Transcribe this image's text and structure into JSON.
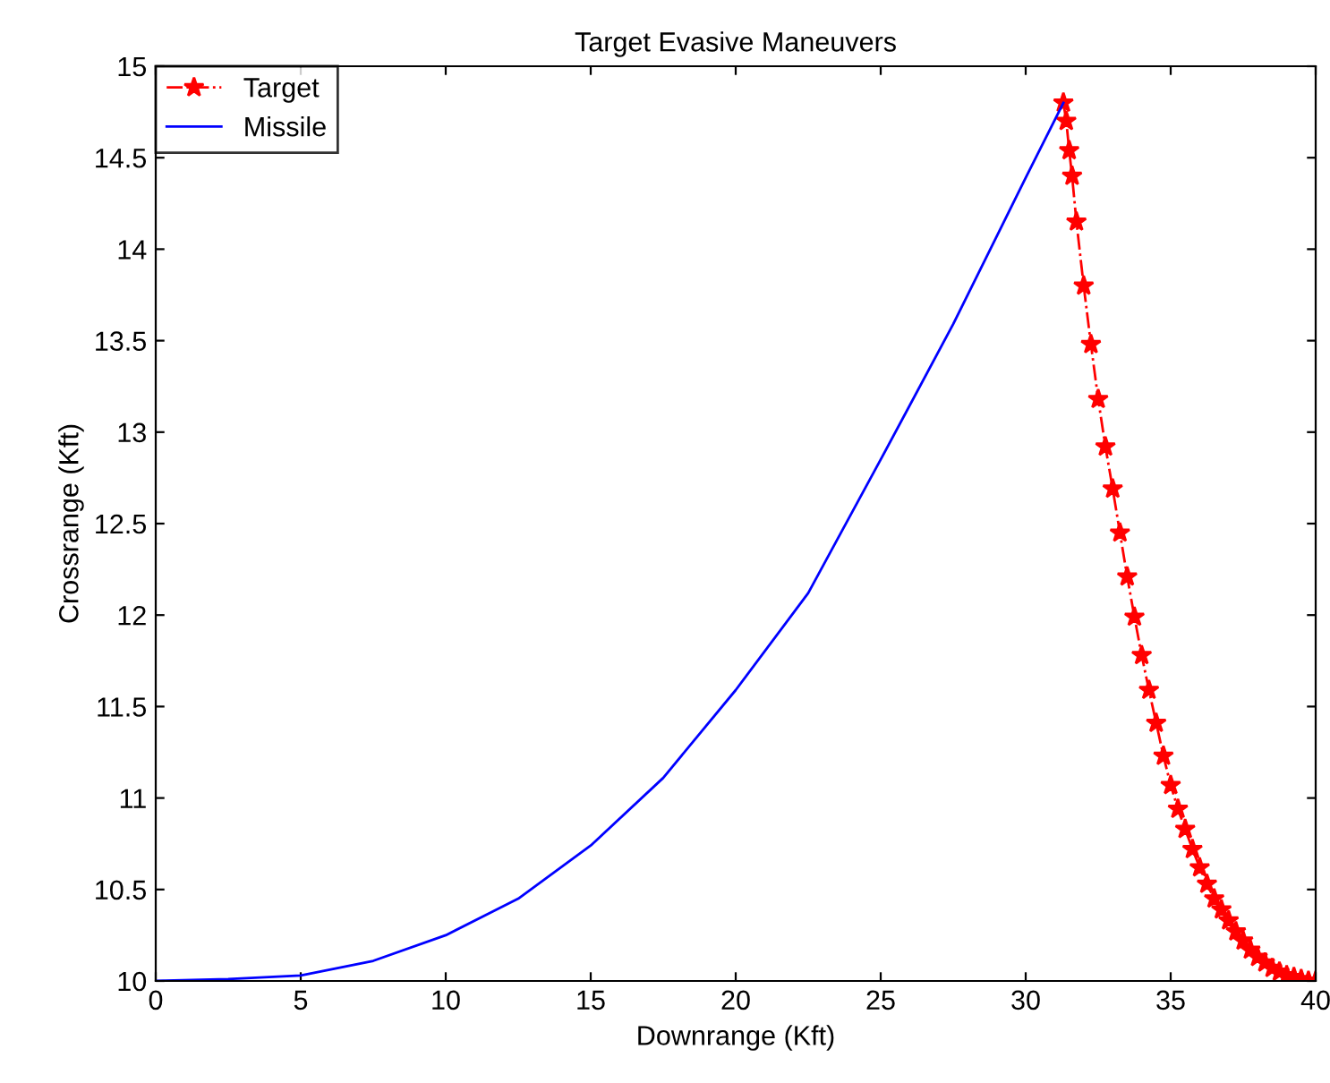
{
  "chart_data": {
    "type": "line",
    "title": "Target Evasive Maneuvers",
    "xlabel": "Downrange (Kft)",
    "ylabel": "Crossrange (Kft)",
    "xlim": [
      0,
      40
    ],
    "ylim": [
      10,
      15
    ],
    "xticks": [
      0,
      5,
      10,
      15,
      20,
      25,
      30,
      35,
      40
    ],
    "yticks": [
      10,
      10.5,
      11,
      11.5,
      12,
      12.5,
      13,
      13.5,
      14,
      14.5,
      15
    ],
    "grid": false,
    "legend": "top left",
    "series": [
      {
        "name": "Target",
        "color": "#ff0000",
        "marker": "star",
        "line_style": "dashed",
        "x": [
          31.3,
          31.4,
          31.5,
          31.6,
          31.75,
          32,
          32.25,
          32.5,
          32.75,
          33,
          33.25,
          33.5,
          33.75,
          34,
          34.25,
          34.5,
          34.75,
          35,
          35.25,
          35.5,
          35.75,
          36,
          36.25,
          36.5,
          36.75,
          37,
          37.25,
          37.5,
          37.75,
          38,
          38.25,
          38.5,
          38.75,
          39,
          39.25,
          39.5,
          39.75,
          40
        ],
        "values": [
          14.8,
          14.7,
          14.54,
          14.4,
          14.15,
          13.8,
          13.48,
          13.18,
          12.92,
          12.69,
          12.45,
          12.21,
          11.99,
          11.78,
          11.59,
          11.41,
          11.23,
          11.07,
          10.94,
          10.83,
          10.72,
          10.62,
          10.53,
          10.45,
          10.39,
          10.33,
          10.27,
          10.22,
          10.17,
          10.13,
          10.1,
          10.07,
          10.05,
          10.03,
          10.02,
          10.01,
          10.0,
          10.0
        ]
      },
      {
        "name": "Missile",
        "color": "#0000ff",
        "marker": "none",
        "line_style": "solid",
        "x": [
          0,
          2.5,
          5,
          7.5,
          10,
          12.5,
          15,
          17.5,
          20,
          22.5,
          25,
          27.5,
          30,
          31.3
        ],
        "values": [
          10,
          10.01,
          10.03,
          10.11,
          10.25,
          10.45,
          10.74,
          11.11,
          11.59,
          12.12,
          12.85,
          13.59,
          14.39,
          14.8
        ]
      }
    ]
  }
}
